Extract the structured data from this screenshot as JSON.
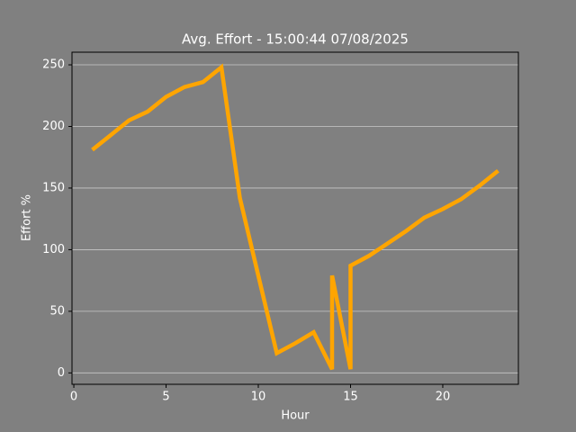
{
  "chart_data": {
    "type": "line",
    "title": "Avg. Effort - 15:00:44 07/08/2025",
    "x_label": "Hour",
    "y_label": "Effort %",
    "x": [
      1,
      2,
      3,
      4,
      5,
      6,
      7,
      8,
      9,
      10,
      11,
      12,
      13,
      14,
      14,
      15,
      15,
      16,
      17,
      18,
      19,
      20,
      21,
      22,
      23
    ],
    "series": [
      {
        "name": "Effort",
        "color": "#ffa500",
        "values": [
          181,
          193,
          205,
          212,
          224,
          232,
          236,
          248,
          142,
          79,
          16,
          24,
          33,
          3,
          79,
          3,
          87,
          95,
          105,
          115,
          126,
          133,
          141,
          152,
          164
        ]
      }
    ],
    "xlim": [
      -0.1,
      24.1
    ],
    "ylim": [
      -9.25,
      260.25
    ],
    "xticks": [
      0,
      5,
      10,
      15,
      20
    ],
    "yticks": [
      0,
      50,
      100,
      150,
      200,
      250
    ],
    "grid": true
  }
}
